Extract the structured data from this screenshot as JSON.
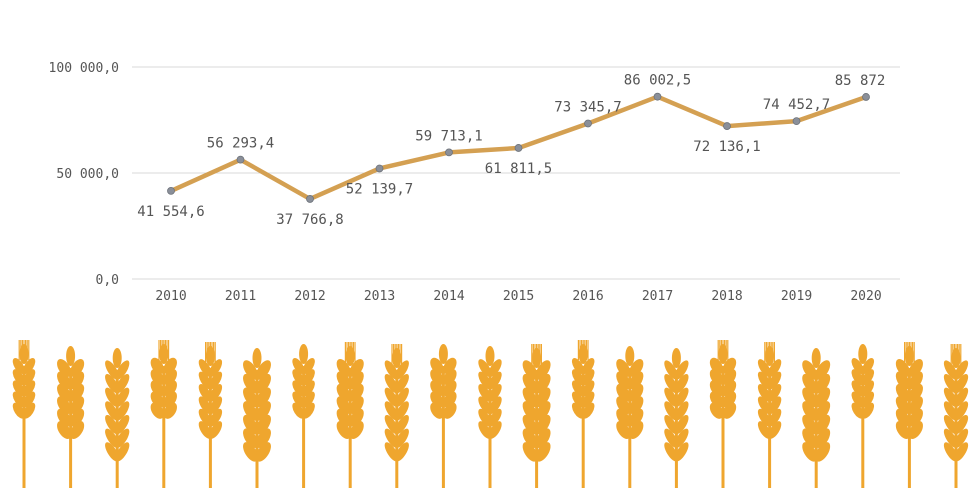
{
  "chart_data": {
    "type": "line",
    "categories": [
      "2010",
      "2011",
      "2012",
      "2013",
      "2014",
      "2015",
      "2016",
      "2017",
      "2018",
      "2019",
      "2020"
    ],
    "values": [
      41554.6,
      56293.4,
      37766.8,
      52139.7,
      59713.1,
      61811.5,
      73345.7,
      86002.5,
      72136.1,
      74452.7,
      85872
    ],
    "value_labels": [
      "41 554,6",
      "56 293,4",
      "37 766,8",
      "52 139,7",
      "59 713,1",
      "61 811,5",
      "73 345,7",
      "86 002,5",
      "72 136,1",
      "74 452,7",
      "85 872"
    ],
    "label_positions": [
      "below",
      "above",
      "below",
      "below",
      "above",
      "below",
      "above",
      "above",
      "below",
      "above",
      "above"
    ],
    "yticks": [
      0,
      50000,
      100000
    ],
    "ytick_labels": [
      "0,0",
      "50 000,0",
      "100 000,0"
    ],
    "ylim": [
      0,
      100000
    ],
    "grid": true,
    "line_color": "#D4A052",
    "marker_color": "#8A8F99"
  },
  "decoration": {
    "wheat_color": "#EFA62E",
    "wheat_icon": "wheat-ear-icon"
  }
}
